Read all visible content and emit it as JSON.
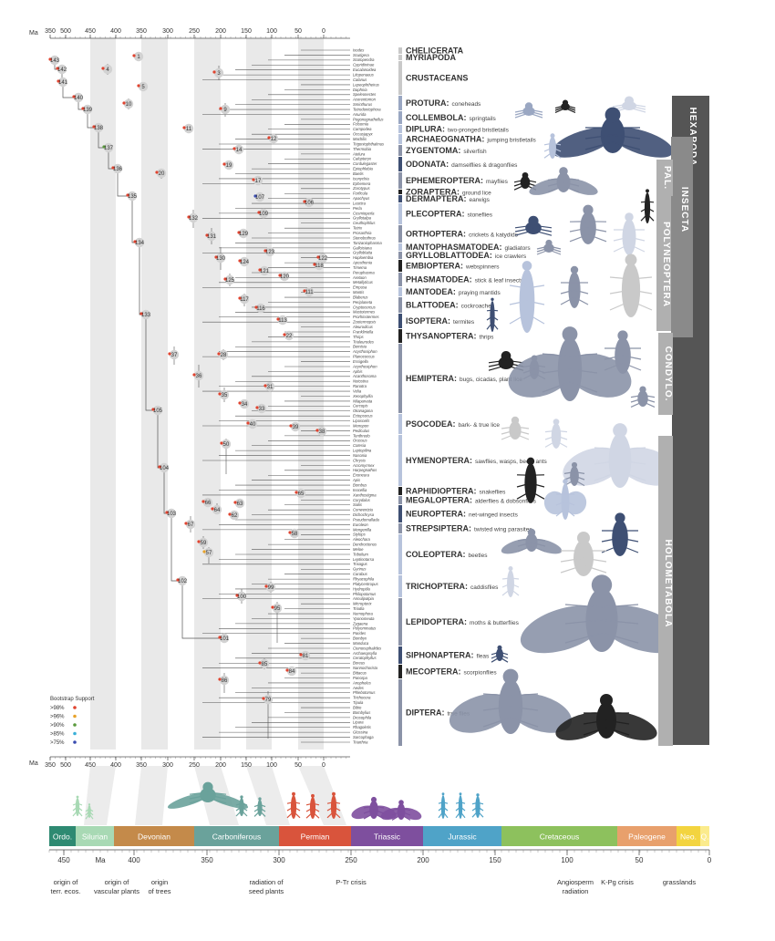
{
  "axis": {
    "unit": "Ma",
    "top_ticks": [
      "350",
      "500",
      "450",
      "400",
      "350",
      "300",
      "250",
      "200",
      "150",
      "100",
      "50",
      "0"
    ],
    "bottom_ticks": [
      "350",
      "500",
      "450",
      "400",
      "350",
      "300",
      "250",
      "200",
      "150",
      "100",
      "50",
      "0"
    ]
  },
  "outgroups": [
    {
      "name": "CHELICERATA",
      "desc": ""
    },
    {
      "name": "MYRIAPODA",
      "desc": ""
    },
    {
      "name": "CRUSTACEANS",
      "desc": ""
    }
  ],
  "orders": [
    {
      "name": "PROTURA:",
      "desc": "coneheads",
      "color": "#9aa7c2"
    },
    {
      "name": "COLLEMBOLA:",
      "desc": "springtails",
      "color": "#9aa7c2"
    },
    {
      "name": "DIPLURA:",
      "desc": "two-pronged bristletails",
      "color": "#b7c3dc"
    },
    {
      "name": "ARCHAEOGNATHA:",
      "desc": "jumping bristletails",
      "color": "#b7c3dc"
    },
    {
      "name": "ZYGENTOMA:",
      "desc": "silverfish",
      "color": "#8b93a8"
    },
    {
      "name": "ODONATA:",
      "desc": "damselflies & dragonflies",
      "color": "#3e4f73"
    },
    {
      "name": "EPHEMEROPTERA:",
      "desc": "mayflies",
      "color": "#8b93a8"
    },
    {
      "name": "ZORAPTERA:",
      "desc": "ground lice",
      "color": "#222222"
    },
    {
      "name": "DERMAPTERA:",
      "desc": "earwigs",
      "color": "#3e4f73"
    },
    {
      "name": "PLECOPTERA:",
      "desc": "stoneflies",
      "color": "#b7c3dc"
    },
    {
      "name": "ORTHOPTERA:",
      "desc": "crickets & katydids",
      "color": "#8b93a8"
    },
    {
      "name": "MANTOPHASMATODEA:",
      "desc": "gladiators",
      "color": "#b7c3dc"
    },
    {
      "name": "GRYLLOBLATTODEA:",
      "desc": "ice crawlers",
      "color": "#8b93a8"
    },
    {
      "name": "EMBIOPTERA:",
      "desc": "webspinners",
      "color": "#222222"
    },
    {
      "name": "PHASMATODEA:",
      "desc": "stick & leaf insects",
      "color": "#8b93a8"
    },
    {
      "name": "MANTODEA:",
      "desc": "praying mantids",
      "color": "#b7c3dc"
    },
    {
      "name": "BLATTODEA:",
      "desc": "cockroaches",
      "color": "#8b93a8"
    },
    {
      "name": "ISOPTERA:",
      "desc": "termites",
      "color": "#3e4f73"
    },
    {
      "name": "THYSANOPTERA:",
      "desc": "thrips",
      "color": "#222222"
    },
    {
      "name": "HEMIPTERA:",
      "desc": "bugs, cicadas, plant lice",
      "color": "#8b93a8"
    },
    {
      "name": "PSOCODEA:",
      "desc": "bark- & true lice",
      "color": "#b7c3dc"
    },
    {
      "name": "HYMENOPTERA:",
      "desc": "sawflies, wasps, bees, ants",
      "color": "#b7c3dc"
    },
    {
      "name": "RAPHIDIOPTERA:",
      "desc": "snakeflies",
      "color": "#222222"
    },
    {
      "name": "MEGALOPTERA:",
      "desc": "alderflies & dobsonflies",
      "color": "#8b93a8"
    },
    {
      "name": "NEUROPTERA:",
      "desc": "net-winged insects",
      "color": "#3e4f73"
    },
    {
      "name": "STREPSIPTERA:",
      "desc": "twisted wing parasites",
      "color": "#8b93a8"
    },
    {
      "name": "COLEOPTERA:",
      "desc": "beetles",
      "color": "#b7c3dc"
    },
    {
      "name": "TRICHOPTERA:",
      "desc": "caddisflies",
      "color": "#b7c3dc"
    },
    {
      "name": "LEPIDOPTERA:",
      "desc": "moths & butterflies",
      "color": "#8b93a8"
    },
    {
      "name": "SIPHONAPTERA:",
      "desc": "fleas",
      "color": "#3e4f73"
    },
    {
      "name": "MECOPTERA:",
      "desc": "scorpionflies",
      "color": "#222222"
    },
    {
      "name": "DIPTERA:",
      "desc": "true flies",
      "color": "#8b93a8"
    }
  ],
  "bands": [
    {
      "label": "HEXAPODA",
      "color": "#555555"
    },
    {
      "label": "INSECTA",
      "color": "#8a8a8a"
    },
    {
      "label": "PAL.",
      "color": "#b0b0b0"
    },
    {
      "label": "POLYNEOPTERA",
      "color": "#b0b0b0"
    },
    {
      "label": "CONDYLO.",
      "color": "#b0b0b0"
    },
    {
      "label": "HOLOMETABOLA",
      "color": "#b0b0b0"
    }
  ],
  "nodes": [
    "143",
    "142",
    "141",
    "140",
    "139",
    "138",
    "137",
    "136",
    "135",
    "134",
    "133",
    "105",
    "104",
    "103",
    "102",
    "101",
    "1",
    "4",
    "3",
    "5",
    "10",
    "9",
    "11",
    "12",
    "14",
    "19",
    "20",
    "17",
    "107",
    "106",
    "109",
    "132",
    "131",
    "129",
    "130",
    "123",
    "122",
    "124",
    "118",
    "121",
    "125",
    "120",
    "111",
    "117",
    "116",
    "113",
    "22",
    "37",
    "28",
    "36",
    "31",
    "35",
    "34",
    "33",
    "40",
    "39",
    "38",
    "50",
    "65",
    "66",
    "63",
    "64",
    "62",
    "67",
    "58",
    "59",
    "57",
    "99",
    "100",
    "95",
    "81",
    "85",
    "84",
    "86",
    "79"
  ],
  "legend": {
    "title": "Bootstrap Support",
    "items": [
      {
        "label": ">98%",
        "color": "#e0432f"
      },
      {
        "label": ">96%",
        "color": "#e8a22a"
      },
      {
        "label": ">90%",
        "color": "#5a9a3c"
      },
      {
        "label": ">85%",
        "color": "#3ab0d8"
      },
      {
        "label": ">75%",
        "color": "#3a4cb0"
      }
    ]
  },
  "timescale": {
    "periods": [
      {
        "name": "Ordo.",
        "color": "#2e8a72"
      },
      {
        "name": "Silurian",
        "color": "#a8d9b4"
      },
      {
        "name": "Devonian",
        "color": "#c48a4a"
      },
      {
        "name": "Carboniferous",
        "color": "#6aa29b"
      },
      {
        "name": "Permian",
        "color": "#d9543c"
      },
      {
        "name": "Triassic",
        "color": "#7e4f9e"
      },
      {
        "name": "Jurassic",
        "color": "#4fa3c8"
      },
      {
        "name": "Cretaceous",
        "color": "#8dc15d"
      },
      {
        "name": "Paleogene",
        "color": "#e8a06c"
      },
      {
        "name": "Neo.",
        "color": "#f3d43f"
      },
      {
        "name": "Q.",
        "color": "#fbeb8c"
      }
    ],
    "ticks": [
      "450",
      "400",
      "350",
      "300",
      "250",
      "200",
      "150",
      "100",
      "50",
      "0"
    ],
    "unit": "Ma",
    "events": [
      {
        "text": "origin of terr. ecos.",
        "color": "#333333"
      },
      {
        "text": "origin of vascular plants",
        "color": "#333333"
      },
      {
        "text": "origin of trees",
        "color": "#333333"
      },
      {
        "text": "radiation of seed plants",
        "color": "#333333"
      },
      {
        "text": "P-Tr crisis",
        "color": "#d9543c"
      },
      {
        "text": "Angiosperm radiation",
        "color": "#333333"
      },
      {
        "text": "K-Pg crisis",
        "color": "#d9543c"
      },
      {
        "text": "grasslands",
        "color": "#333333"
      }
    ]
  },
  "taxa": [
    "Ixodes",
    "Scutigera",
    "Scolopendra",
    "Cypridininae",
    "Eucalanoidea",
    "Litopenaeus",
    "Calanus",
    "Lepeophtheirus",
    "Daphnia",
    "Speleonectes",
    "Acerentomon",
    "Sminthurus",
    "Tetrodontophora",
    "Anurida",
    "Pogonognathellus",
    "Folsomia",
    "Campodea",
    "Occasjapyx",
    "Machilis",
    "Trigoniophthalmus",
    "Thermobia",
    "Atelura",
    "Calopteryx",
    "Cordulegaster",
    "Epiophlebia",
    "Baetis",
    "Isonychia",
    "Ephemera",
    "Zorotypus",
    "Forficula",
    "Apachyus",
    "Leuctra",
    "Perla",
    "Cosmioperla",
    "Gryllotalpa",
    "Ceuthophilus",
    "Tetrix",
    "Prosarthria",
    "Stenobothrus",
    "Tanzaniophasma",
    "Galloisiana",
    "Grylloblatta",
    "Haploembia",
    "Aposthonia",
    "Timema",
    "Peruphasma",
    "Aretaon",
    "Metallyticus",
    "Empusa",
    "Mantis",
    "Blaberus",
    "Periplaneta",
    "Cryptocercus",
    "Mastotermes",
    "Prorhinotermes",
    "Zootermopsis",
    "Aleurodicus",
    "Frankliniella",
    "Thrips",
    "Trialeurodes",
    "Bemisia",
    "Acyrthosiphon",
    "Planococcus",
    "Essigella",
    "Acyrthosiphon",
    "Aphis",
    "Acanthosoma",
    "Notostira",
    "Ranatra",
    "Velia",
    "Xenophyllia",
    "Nilaparvata",
    "Cercopis",
    "Okanagana",
    "Ectopsocus",
    "Liposcelis",
    "Menopon",
    "Pediculus",
    "Tenthredo",
    "Orussus",
    "Cotesia",
    "Leptopilina",
    "Nasonia",
    "Chrysis",
    "Acromyrmex",
    "Harpegnathos",
    "Exoneura",
    "Apis",
    "Bombus",
    "Inocellia",
    "Xanthostigma",
    "Corydalus",
    "Sialis",
    "Conwentzia",
    "Dichochrysa",
    "Pseudomallada",
    "Euroleon",
    "Mengenilla",
    "Stylops",
    "Aleochara",
    "Dendroctonus",
    "Meloe",
    "Tribolium",
    "Leptinotarsa",
    "Trixagus",
    "Gyrinus",
    "Carabus",
    "Rhyacophila",
    "Platycentropus",
    "Hydroptila",
    "Philopotamus",
    "Annulipalpia",
    "Micropterix",
    "Triodia",
    "Nemophora",
    "Yponomeuta",
    "Zygaena",
    "Polyommatus",
    "Parides",
    "Bombyx",
    "Manduca",
    "Ctenocephalides",
    "Archaeopsylla",
    "Ceratophyllus",
    "Boreus",
    "Nannochorista",
    "Bittacus",
    "Panorpa",
    "Anopheles",
    "Aedes",
    "Phlebotomus",
    "Trichocera",
    "Tipula",
    "Bibio",
    "Bombylius",
    "Drosophila",
    "Lipara",
    "Rhagoletis",
    "Glossina",
    "Sarcophaga",
    "Triarthria"
  ]
}
